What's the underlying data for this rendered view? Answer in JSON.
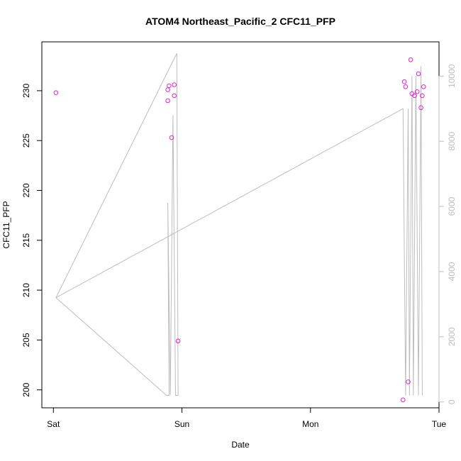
{
  "chart_data": {
    "type": "scatter",
    "title": "ATOM4 Northeast_Pacific_2 CFC11_PFP",
    "xlabel": "Date",
    "ylabel": "CFC11_PFP",
    "x_ticks": [
      {
        "label": "Sat",
        "day": 0
      },
      {
        "label": "Sun",
        "day": 1
      },
      {
        "label": "Mon",
        "day": 2
      },
      {
        "label": "Tue",
        "day": 3
      }
    ],
    "xlim_days": [
      -0.09,
      3.0
    ],
    "ylim": [
      198.2,
      234.9
    ],
    "y_ticks": [
      200,
      205,
      210,
      215,
      220,
      225,
      230
    ],
    "y2lim": [
      -180,
      11050
    ],
    "y2_ticks": [
      0,
      2000,
      4000,
      6000,
      8000,
      10000
    ],
    "colors": {
      "points": "#e81fc8",
      "line": "#bdbdbd",
      "axis": "#000000",
      "axis_right": "#bdbdbd"
    },
    "series": [
      {
        "kind": "points",
        "axis": "left",
        "points": [
          {
            "day": 0.02,
            "value": 229.8
          },
          {
            "day": 0.89,
            "value": 230.1
          },
          {
            "day": 0.89,
            "value": 229.0
          },
          {
            "day": 0.9,
            "value": 230.5
          },
          {
            "day": 0.92,
            "value": 225.3
          },
          {
            "day": 0.94,
            "value": 229.5
          },
          {
            "day": 0.94,
            "value": 230.6
          },
          {
            "day": 0.97,
            "value": 204.9
          },
          {
            "day": 2.72,
            "value": 199.0
          },
          {
            "day": 2.73,
            "value": 230.9
          },
          {
            "day": 2.74,
            "value": 230.4
          },
          {
            "day": 2.76,
            "value": 200.8
          },
          {
            "day": 2.78,
            "value": 233.1
          },
          {
            "day": 2.79,
            "value": 229.7
          },
          {
            "day": 2.81,
            "value": 229.5
          },
          {
            "day": 2.83,
            "value": 229.9
          },
          {
            "day": 2.84,
            "value": 231.7
          },
          {
            "day": 2.86,
            "value": 228.3
          },
          {
            "day": 2.87,
            "value": 229.5
          },
          {
            "day": 2.88,
            "value": 230.4
          }
        ]
      },
      {
        "kind": "line",
        "axis": "right",
        "points": [
          {
            "day": 0.02,
            "value": 3200
          },
          {
            "day": 0.96,
            "value": 10700
          },
          {
            "day": 0.97,
            "value": 200
          },
          {
            "day": 0.95,
            "value": 200
          },
          {
            "day": 0.93,
            "value": 8800
          },
          {
            "day": 0.91,
            "value": 200
          },
          {
            "day": 0.89,
            "value": 6100
          },
          {
            "day": 0.9,
            "value": 200
          },
          {
            "day": 0.88,
            "value": 200
          },
          {
            "day": 0.02,
            "value": 3200
          },
          {
            "day": 2.72,
            "value": 9000
          },
          {
            "day": 2.74,
            "value": 200
          },
          {
            "day": 2.76,
            "value": 9000
          },
          {
            "day": 2.77,
            "value": 200
          },
          {
            "day": 2.79,
            "value": 10000
          },
          {
            "day": 2.8,
            "value": 200
          },
          {
            "day": 2.82,
            "value": 10000
          },
          {
            "day": 2.84,
            "value": 200
          },
          {
            "day": 2.86,
            "value": 10300
          },
          {
            "day": 2.87,
            "value": 200
          }
        ]
      }
    ]
  }
}
